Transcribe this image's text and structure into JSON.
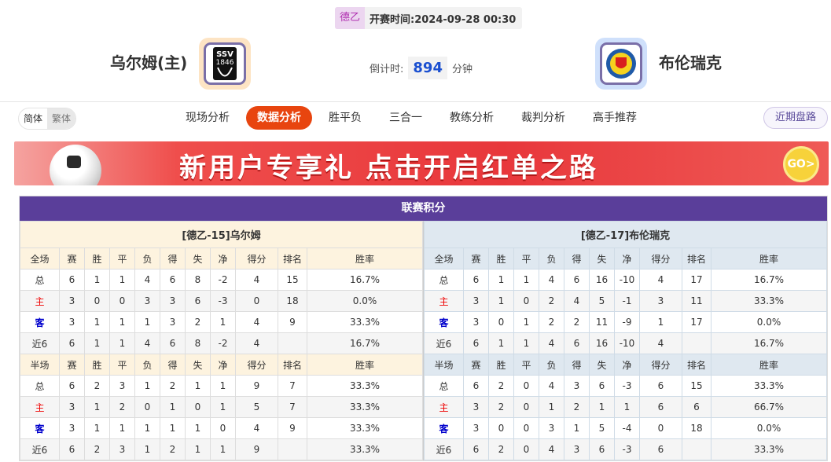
{
  "header": {
    "league": "德乙",
    "kickoff_label": "开赛时间:",
    "kickoff": "2024-09-28 00:30",
    "home": "乌尔姆(主)",
    "away": "布伦瑞克",
    "countdown_label": "倒计时:",
    "countdown": "894",
    "countdown_unit": "分钟",
    "home_logo_text": "SSV 1846"
  },
  "nav": {
    "lang": [
      "简体",
      "繁体"
    ],
    "tabs": [
      "现场分析",
      "数据分析",
      "胜平负",
      "三合一",
      "教练分析",
      "裁判分析",
      "高手推荐"
    ],
    "active": "数据分析",
    "recent": "近期盘路"
  },
  "banner": {
    "text": "新用户专享礼  点击开启红单之路",
    "go": "GO>"
  },
  "standings": {
    "title": "联赛积分",
    "cols": [
      "赛",
      "胜",
      "平",
      "负",
      "得",
      "失",
      "净",
      "得分",
      "排名",
      "胜率"
    ],
    "sections": [
      "全场",
      "半场"
    ],
    "home": {
      "name": "[德乙-15]乌尔姆",
      "full": [
        [
          "总",
          "6",
          "1",
          "1",
          "4",
          "6",
          "8",
          "-2",
          "4",
          "15",
          "16.7%"
        ],
        [
          "主",
          "3",
          "0",
          "0",
          "3",
          "3",
          "6",
          "-3",
          "0",
          "18",
          "0.0%"
        ],
        [
          "客",
          "3",
          "1",
          "1",
          "1",
          "3",
          "2",
          "1",
          "4",
          "9",
          "33.3%"
        ],
        [
          "近6",
          "6",
          "1",
          "1",
          "4",
          "6",
          "8",
          "-2",
          "4",
          "",
          "16.7%"
        ]
      ],
      "half": [
        [
          "总",
          "6",
          "2",
          "3",
          "1",
          "2",
          "1",
          "1",
          "9",
          "7",
          "33.3%"
        ],
        [
          "主",
          "3",
          "1",
          "2",
          "0",
          "1",
          "0",
          "1",
          "5",
          "7",
          "33.3%"
        ],
        [
          "客",
          "3",
          "1",
          "1",
          "1",
          "1",
          "1",
          "0",
          "4",
          "9",
          "33.3%"
        ],
        [
          "近6",
          "6",
          "2",
          "3",
          "1",
          "2",
          "1",
          "1",
          "9",
          "",
          "33.3%"
        ]
      ]
    },
    "away": {
      "name": "[德乙-17]布伦瑞克",
      "full": [
        [
          "总",
          "6",
          "1",
          "1",
          "4",
          "6",
          "16",
          "-10",
          "4",
          "17",
          "16.7%"
        ],
        [
          "主",
          "3",
          "1",
          "0",
          "2",
          "4",
          "5",
          "-1",
          "3",
          "11",
          "33.3%"
        ],
        [
          "客",
          "3",
          "0",
          "1",
          "2",
          "2",
          "11",
          "-9",
          "1",
          "17",
          "0.0%"
        ],
        [
          "近6",
          "6",
          "1",
          "1",
          "4",
          "6",
          "16",
          "-10",
          "4",
          "",
          "16.7%"
        ]
      ],
      "half": [
        [
          "总",
          "6",
          "2",
          "0",
          "4",
          "3",
          "6",
          "-3",
          "6",
          "15",
          "33.3%"
        ],
        [
          "主",
          "3",
          "2",
          "0",
          "1",
          "2",
          "1",
          "1",
          "6",
          "6",
          "66.7%"
        ],
        [
          "客",
          "3",
          "0",
          "0",
          "3",
          "1",
          "5",
          "-4",
          "0",
          "18",
          "0.0%"
        ],
        [
          "近6",
          "6",
          "2",
          "0",
          "4",
          "3",
          "6",
          "-3",
          "6",
          "",
          "33.3%"
        ]
      ]
    }
  }
}
